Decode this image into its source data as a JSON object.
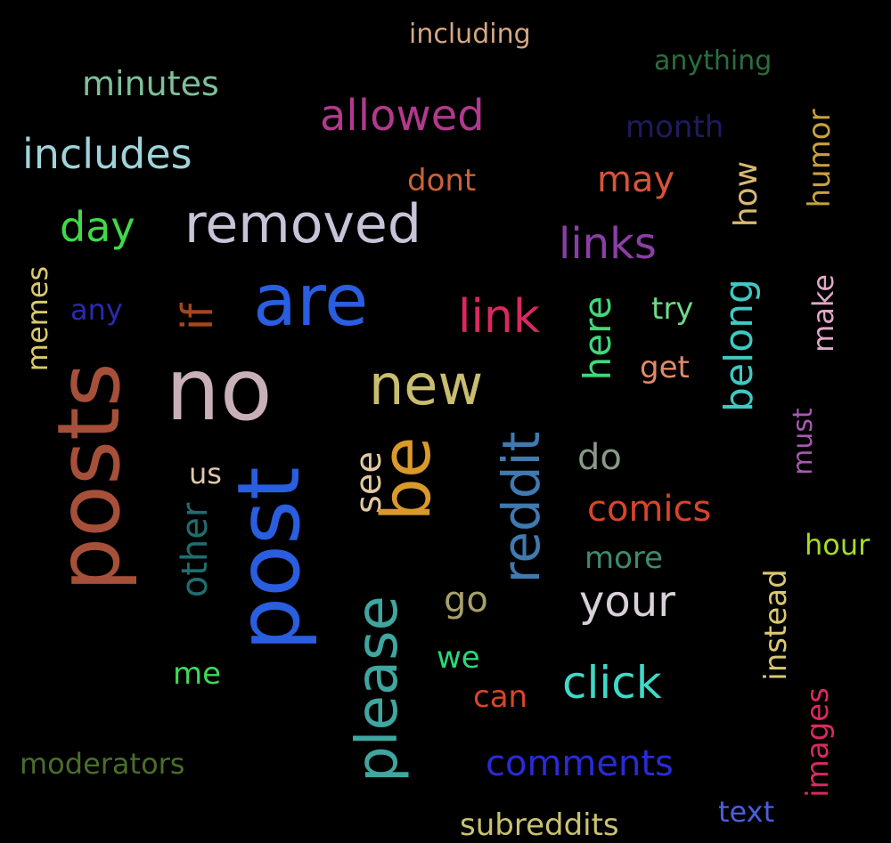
{
  "background": "#000000",
  "words": [
    {
      "key": "including",
      "text": "including",
      "color": "#d4a783",
      "rotated": false
    },
    {
      "key": "anything",
      "text": "anything",
      "color": "#2a6e3f",
      "rotated": false
    },
    {
      "key": "minutes",
      "text": "minutes",
      "color": "#7fbf9a",
      "rotated": false
    },
    {
      "key": "allowed",
      "text": "allowed",
      "color": "#b03a8c",
      "rotated": false
    },
    {
      "key": "month",
      "text": "month",
      "color": "#1f1b5c",
      "rotated": false
    },
    {
      "key": "includes",
      "text": "includes",
      "color": "#9fd3d9",
      "rotated": false
    },
    {
      "key": "humor",
      "text": "humor",
      "color": "#c9a23a",
      "rotated": true
    },
    {
      "key": "dont",
      "text": "dont",
      "color": "#c9623a",
      "rotated": false
    },
    {
      "key": "may",
      "text": "may",
      "color": "#d9533a",
      "rotated": false
    },
    {
      "key": "how",
      "text": "how",
      "color": "#d9b870",
      "rotated": true
    },
    {
      "key": "day",
      "text": "day",
      "color": "#3fd94a",
      "rotated": false
    },
    {
      "key": "removed",
      "text": "removed",
      "color": "#c9c3d9",
      "rotated": false
    },
    {
      "key": "links",
      "text": "links",
      "color": "#8a3fa6",
      "rotated": false
    },
    {
      "key": "memes",
      "text": "memes",
      "color": "#d9c870",
      "rotated": true
    },
    {
      "key": "any",
      "text": "any",
      "color": "#2a2ab0",
      "rotated": false
    },
    {
      "key": "if",
      "text": "if",
      "color": "#a6451f",
      "rotated": true
    },
    {
      "key": "are",
      "text": "are",
      "color": "#2a5ee0",
      "rotated": false
    },
    {
      "key": "link",
      "text": "link",
      "color": "#d92a5e",
      "rotated": false
    },
    {
      "key": "here",
      "text": "here",
      "color": "#3fd97a",
      "rotated": true
    },
    {
      "key": "try",
      "text": "try",
      "color": "#6fd98a",
      "rotated": false
    },
    {
      "key": "belong",
      "text": "belong",
      "color": "#3fc9c3",
      "rotated": true
    },
    {
      "key": "make",
      "text": "make",
      "color": "#e0a8c8",
      "rotated": true
    },
    {
      "key": "get",
      "text": "get",
      "color": "#e08a6a",
      "rotated": false
    },
    {
      "key": "posts",
      "text": "posts",
      "color": "#a6503a",
      "rotated": true
    },
    {
      "key": "no",
      "text": "no",
      "color": "#c9b0b8",
      "rotated": false
    },
    {
      "key": "new",
      "text": "new",
      "color": "#c9bd6f",
      "rotated": false
    },
    {
      "key": "us",
      "text": "us",
      "color": "#e0c8a8",
      "rotated": false
    },
    {
      "key": "see",
      "text": "see",
      "color": "#e0c8a0",
      "rotated": true
    },
    {
      "key": "be",
      "text": "be",
      "color": "#d99a2a",
      "rotated": true
    },
    {
      "key": "reddit",
      "text": "reddit",
      "color": "#3f7ab0",
      "rotated": true
    },
    {
      "key": "do",
      "text": "do",
      "color": "#8a9a8a",
      "rotated": false
    },
    {
      "key": "must",
      "text": "must",
      "color": "#a65ab0",
      "rotated": true
    },
    {
      "key": "post",
      "text": "post",
      "color": "#2a5ee0",
      "rotated": true
    },
    {
      "key": "other",
      "text": "other",
      "color": "#1f6e70",
      "rotated": true
    },
    {
      "key": "comics",
      "text": "comics",
      "color": "#d9452a",
      "rotated": false
    },
    {
      "key": "hour",
      "text": "hour",
      "color": "#a6d92a",
      "rotated": false
    },
    {
      "key": "more",
      "text": "more",
      "color": "#3f8a6e",
      "rotated": false
    },
    {
      "key": "go",
      "text": "go",
      "color": "#a6a06a",
      "rotated": false
    },
    {
      "key": "your",
      "text": "your",
      "color": "#d9d0d9",
      "rotated": false
    },
    {
      "key": "instead",
      "text": "instead",
      "color": "#d9c870",
      "rotated": true
    },
    {
      "key": "please",
      "text": "please",
      "color": "#3fa6a0",
      "rotated": true
    },
    {
      "key": "we",
      "text": "we",
      "color": "#2ad97a",
      "rotated": false
    },
    {
      "key": "me",
      "text": "me",
      "color": "#3fd95a",
      "rotated": false
    },
    {
      "key": "click",
      "text": "click",
      "color": "#3fd9c8",
      "rotated": false
    },
    {
      "key": "can",
      "text": "can",
      "color": "#d9452a",
      "rotated": false
    },
    {
      "key": "images",
      "text": "images",
      "color": "#d92a5e",
      "rotated": true
    },
    {
      "key": "moderators",
      "text": "moderators",
      "color": "#4a6e2a",
      "rotated": false
    },
    {
      "key": "comments",
      "text": "comments",
      "color": "#2a2ad9",
      "rotated": false
    },
    {
      "key": "subreddits",
      "text": "subreddits",
      "color": "#c9c36f",
      "rotated": false
    },
    {
      "key": "text",
      "text": "text",
      "color": "#4a5ee0",
      "rotated": false
    }
  ]
}
